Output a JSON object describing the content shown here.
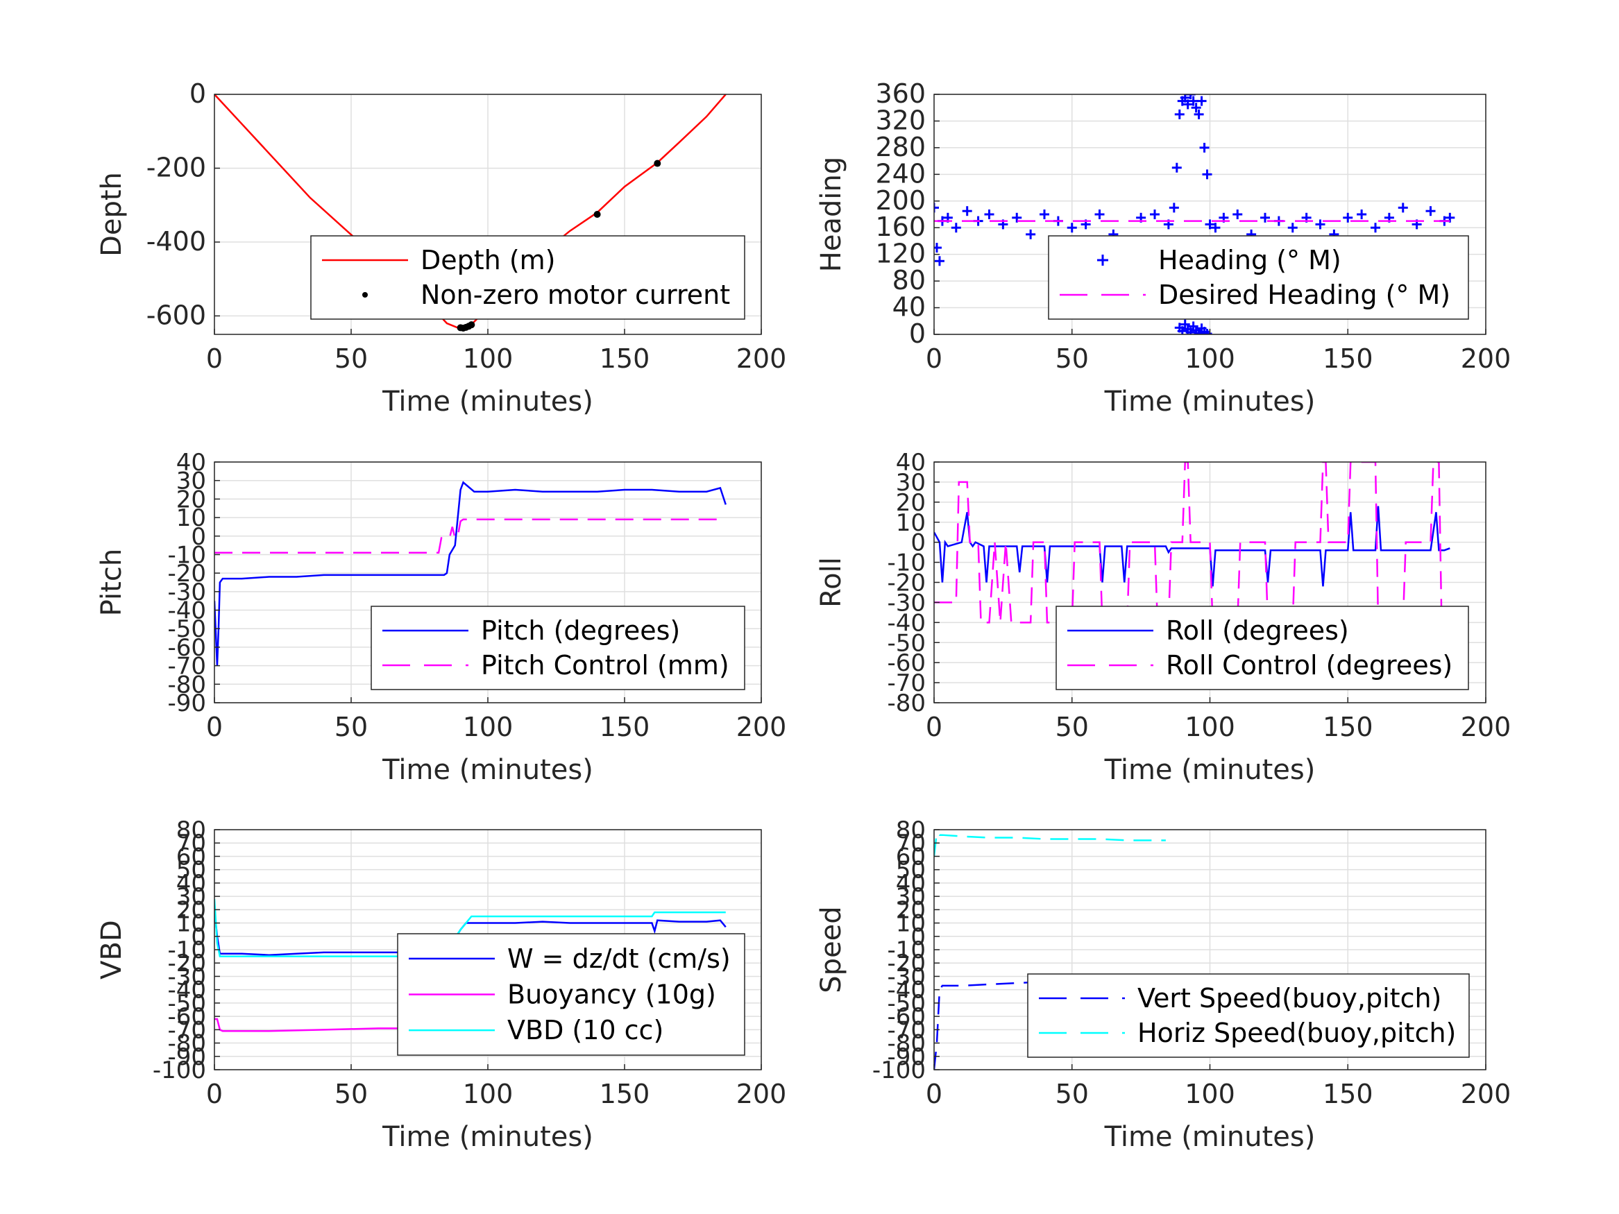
{
  "chart_data": [
    {
      "type": "line",
      "xlabel": "Time (minutes)",
      "ylabel": "Depth",
      "xlim": [
        0,
        200
      ],
      "ylim": [
        -650,
        0
      ],
      "xticks": [
        0,
        50,
        100,
        150,
        200
      ],
      "yticks": [
        0,
        -200,
        -400,
        -600
      ],
      "grid": true,
      "legend_position": "bottom-right",
      "series": [
        {
          "name": "Depth (m)",
          "style": "line",
          "color": "#ff0000",
          "x": [
            0,
            10,
            20,
            35,
            50,
            65,
            80,
            85,
            90,
            93,
            100,
            110,
            120,
            130,
            140,
            150,
            162,
            170,
            180,
            187
          ],
          "y": [
            0,
            -80,
            -160,
            -280,
            -380,
            -480,
            -580,
            -620,
            -635,
            -630,
            -580,
            -500,
            -430,
            -370,
            -320,
            -250,
            -185,
            -130,
            -60,
            0
          ]
        },
        {
          "name": "Non-zero motor current",
          "style": "markers",
          "color": "#000000",
          "x": [
            90,
            91,
            92,
            93,
            94,
            140,
            162
          ],
          "y": [
            -632,
            -633,
            -631,
            -628,
            -624,
            -325,
            -187
          ]
        }
      ]
    },
    {
      "type": "scatter",
      "xlabel": "Time (minutes)",
      "ylabel": "Heading",
      "xlim": [
        0,
        200
      ],
      "ylim": [
        0,
        360
      ],
      "xticks": [
        0,
        50,
        100,
        150,
        200
      ],
      "yticks": [
        0,
        40,
        80,
        120,
        160,
        200,
        240,
        280,
        320,
        360
      ],
      "grid": true,
      "legend_position": "bottom-right",
      "series": [
        {
          "name": "Heading (° M)",
          "style": "plus",
          "color": "#0000ff",
          "x": [
            0,
            1,
            2,
            3,
            5,
            8,
            12,
            16,
            20,
            25,
            30,
            35,
            40,
            45,
            50,
            55,
            60,
            65,
            70,
            75,
            80,
            85,
            87,
            88,
            89,
            90,
            91,
            92,
            93,
            94,
            95,
            96,
            97,
            98,
            99,
            100,
            102,
            105,
            110,
            115,
            120,
            125,
            130,
            135,
            140,
            145,
            150,
            155,
            160,
            165,
            170,
            175,
            180,
            185,
            187
          ],
          "y": [
            190,
            130,
            110,
            170,
            175,
            160,
            185,
            170,
            180,
            165,
            175,
            150,
            180,
            170,
            160,
            165,
            180,
            150,
            140,
            175,
            180,
            165,
            190,
            250,
            330,
            350,
            355,
            345,
            360,
            350,
            340,
            330,
            350,
            280,
            240,
            165,
            160,
            175,
            180,
            150,
            175,
            170,
            160,
            175,
            165,
            150,
            175,
            180,
            160,
            175,
            190,
            165,
            185,
            170,
            175
          ]
        },
        {
          "name": "",
          "style": "plus",
          "color": "#0000ff",
          "x": [
            89,
            90,
            91,
            92,
            93,
            94,
            95,
            96,
            97,
            98,
            99
          ],
          "y": [
            10,
            5,
            15,
            8,
            3,
            12,
            6,
            2,
            9,
            4,
            1
          ]
        },
        {
          "name": "Desired Heading (° M)",
          "style": "dashed",
          "color": "#ff00ff",
          "x": [
            0,
            187
          ],
          "y": [
            170,
            170
          ]
        }
      ]
    },
    {
      "type": "line",
      "xlabel": "Time (minutes)",
      "ylabel": "Pitch",
      "xlim": [
        0,
        200
      ],
      "ylim": [
        -90,
        40
      ],
      "xticks": [
        0,
        50,
        100,
        150,
        200
      ],
      "yticks": [
        40,
        30,
        20,
        10,
        0,
        -10,
        -20,
        -30,
        -40,
        -50,
        -60,
        -70,
        -80,
        -90
      ],
      "grid": true,
      "legend_position": "bottom-right",
      "series": [
        {
          "name": "Pitch (degrees)",
          "style": "line",
          "color": "#0000ff",
          "x": [
            0,
            1,
            1.5,
            2,
            3,
            10,
            20,
            30,
            40,
            50,
            60,
            70,
            80,
            84,
            85,
            86,
            88,
            90,
            91,
            95,
            100,
            110,
            120,
            130,
            140,
            150,
            160,
            170,
            180,
            185,
            187
          ],
          "y": [
            -35,
            -70,
            -50,
            -25,
            -23,
            -23,
            -22,
            -22,
            -21,
            -21,
            -21,
            -21,
            -21,
            -21,
            -20,
            -10,
            -5,
            25,
            29,
            24,
            24,
            25,
            24,
            24,
            24,
            25,
            25,
            24,
            24,
            26,
            17
          ]
        },
        {
          "name": "Pitch Control (mm)",
          "style": "dashed",
          "color": "#ff00ff",
          "x": [
            0,
            82,
            83,
            86,
            87,
            88,
            89,
            90,
            91,
            187
          ],
          "y": [
            -9,
            -9,
            -1,
            -1,
            5,
            -1,
            0,
            8,
            9,
            9
          ]
        }
      ]
    },
    {
      "type": "line",
      "xlabel": "Time (minutes)",
      "ylabel": "Roll",
      "xlim": [
        0,
        200
      ],
      "ylim": [
        -80,
        40
      ],
      "xticks": [
        0,
        50,
        100,
        150,
        200
      ],
      "yticks": [
        40,
        30,
        20,
        10,
        0,
        -10,
        -20,
        -30,
        -40,
        -50,
        -60,
        -70,
        -80
      ],
      "grid": true,
      "legend_position": "bottom-right",
      "series": [
        {
          "name": "Roll (degrees)",
          "style": "line",
          "color": "#0000ff",
          "x": [
            0,
            2,
            3,
            4,
            5,
            10,
            12,
            13,
            14,
            15,
            18,
            19,
            20,
            30,
            31,
            32,
            40,
            41,
            42,
            60,
            61,
            62,
            68,
            69,
            70,
            84,
            85,
            86,
            95,
            100,
            101,
            102,
            110,
            120,
            121,
            122,
            140,
            141,
            142,
            150,
            151,
            152,
            160,
            161,
            162,
            165,
            170,
            175,
            180,
            182,
            183,
            185,
            187
          ],
          "y": [
            5,
            0,
            -20,
            0,
            -2,
            0,
            15,
            0,
            -2,
            0,
            -2,
            -20,
            -2,
            -2,
            -15,
            -2,
            -2,
            -20,
            -2,
            -2,
            -20,
            -2,
            -2,
            -20,
            -2,
            -2,
            -5,
            -3,
            -3,
            -3,
            -22,
            -4,
            -4,
            -4,
            -20,
            -4,
            -4,
            -22,
            -4,
            -4,
            15,
            -4,
            -4,
            18,
            -4,
            -4,
            -4,
            -4,
            -4,
            15,
            -4,
            -4,
            -3
          ]
        },
        {
          "name": "Roll Control (degrees)",
          "style": "dashed",
          "color": "#ff00ff",
          "x": [
            0,
            8,
            9,
            12,
            13,
            16,
            17,
            20,
            22,
            24,
            26,
            28,
            30,
            35,
            36,
            40,
            41,
            50,
            51,
            60,
            61,
            70,
            71,
            80,
            81,
            85,
            86,
            90,
            91,
            92,
            93,
            100,
            101,
            110,
            111,
            120,
            121,
            130,
            131,
            140,
            141,
            142,
            143,
            150,
            151,
            160,
            161,
            170,
            171,
            180,
            181,
            183,
            184,
            187
          ],
          "y": [
            -30,
            -30,
            30,
            30,
            0,
            0,
            -40,
            -40,
            0,
            -40,
            0,
            -40,
            -40,
            -40,
            0,
            0,
            -40,
            -40,
            0,
            0,
            -40,
            -40,
            0,
            0,
            -40,
            -40,
            0,
            0,
            40,
            40,
            0,
            0,
            -40,
            -40,
            0,
            0,
            -40,
            -40,
            0,
            0,
            40,
            40,
            0,
            0,
            40,
            40,
            -40,
            -40,
            0,
            0,
            40,
            40,
            -40,
            -40
          ]
        }
      ]
    },
    {
      "type": "line",
      "xlabel": "Time (minutes)",
      "ylabel": "VBD",
      "xlim": [
        0,
        200
      ],
      "ylim": [
        -100,
        80
      ],
      "xticks": [
        0,
        50,
        100,
        150,
        200
      ],
      "yticks": [
        80,
        70,
        60,
        50,
        40,
        30,
        20,
        10,
        0,
        -10,
        -20,
        -30,
        -40,
        -50,
        -60,
        -70,
        -80,
        -90,
        -100
      ],
      "grid": true,
      "legend_position": "bottom-right",
      "series": [
        {
          "name": "W = dz/dt (cm/s)",
          "style": "line",
          "color": "#0000ff",
          "x": [
            0,
            1,
            2,
            3,
            10,
            20,
            30,
            40,
            50,
            60,
            70,
            80,
            85,
            86,
            90,
            92,
            95,
            100,
            110,
            120,
            130,
            140,
            150,
            160,
            161,
            162,
            170,
            180,
            185,
            187
          ],
          "y": [
            20,
            0,
            -13,
            -13,
            -13,
            -14,
            -13,
            -12,
            -12,
            -12,
            -12,
            -12,
            -12,
            -8,
            5,
            10,
            10,
            10,
            10,
            11,
            10,
            10,
            10,
            10,
            4,
            12,
            11,
            11,
            12,
            7
          ]
        },
        {
          "name": "Buoyancy (10g)",
          "style": "line",
          "color": "#ff00ff",
          "x": [
            0,
            1,
            2,
            3,
            10,
            20,
            40,
            60,
            84
          ],
          "y": [
            -62,
            -62,
            -70,
            -71,
            -71,
            -71,
            -70,
            -69,
            -69
          ]
        },
        {
          "name": "VBD (10 cc)",
          "style": "line",
          "color": "#00ffff",
          "x": [
            0,
            1,
            2,
            3,
            20,
            40,
            60,
            84,
            85,
            90,
            94,
            100,
            120,
            140,
            160,
            161,
            187
          ],
          "y": [
            28,
            -5,
            -15,
            -15,
            -15,
            -15,
            -15,
            -15,
            -10,
            5,
            15,
            15,
            15,
            15,
            15,
            18,
            18
          ]
        }
      ]
    },
    {
      "type": "line",
      "xlabel": "Time (minutes)",
      "ylabel": "Speed",
      "xlim": [
        0,
        200
      ],
      "ylim": [
        -100,
        80
      ],
      "xticks": [
        0,
        50,
        100,
        150,
        200
      ],
      "yticks": [
        80,
        70,
        60,
        50,
        40,
        30,
        20,
        10,
        0,
        -10,
        -20,
        -30,
        -40,
        -50,
        -60,
        -70,
        -80,
        -90,
        -100
      ],
      "grid": true,
      "legend_position": "bottom-right",
      "series": [
        {
          "name": "Vert Speed(buoy,pitch)",
          "style": "dashed",
          "color": "#0000ff",
          "x": [
            0,
            1,
            1.5,
            2,
            3,
            10,
            20,
            30,
            40,
            50,
            60,
            70,
            80,
            84
          ],
          "y": [
            -100,
            -80,
            -60,
            -40,
            -37,
            -37,
            -36,
            -35,
            -34,
            -34,
            -33,
            -33,
            -33,
            -32
          ]
        },
        {
          "name": "Horiz Speed(buoy,pitch)",
          "style": "dashed",
          "color": "#00ffff",
          "x": [
            0,
            1,
            2,
            3,
            10,
            20,
            30,
            40,
            50,
            60,
            70,
            80,
            84
          ],
          "y": [
            60,
            78,
            76,
            76,
            75,
            74,
            74,
            73,
            73,
            73,
            72,
            72,
            72
          ]
        }
      ]
    }
  ]
}
